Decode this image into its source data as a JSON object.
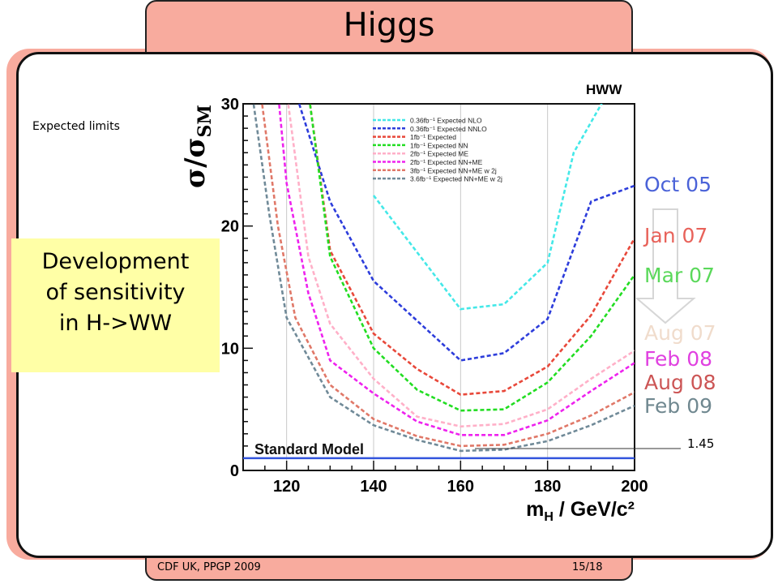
{
  "slide": {
    "title": "Higgs",
    "footer_left": "CDF UK, PPGP 2009",
    "footer_right": "15/18",
    "expected_limits_label": "Expected limits",
    "development_lines": [
      "Development",
      "of sensitivity",
      "in H->WW"
    ],
    "timeline": [
      {
        "label": "Oct 05",
        "color": "#4a62d8"
      },
      {
        "label": "Jan 07",
        "color": "#e8625a"
      },
      {
        "label": "Mar 07",
        "color": "#5ad85a"
      },
      {
        "label": "Aug 07",
        "color": "#f0dccc"
      },
      {
        "label": "Feb 08",
        "color": "#e040e0"
      },
      {
        "label": "Aug 08",
        "color": "#cc5555"
      },
      {
        "label": "Feb 09",
        "color": "#708890"
      }
    ],
    "sm_value_label": "1.45"
  },
  "chart_data": {
    "type": "line",
    "title": "HWW",
    "xlabel": "m_H / GeV/c^2",
    "ylabel": "σ/σ_SM",
    "xlim": [
      110,
      200
    ],
    "ylim": [
      0,
      30
    ],
    "xticks": [
      120,
      140,
      160,
      180,
      200
    ],
    "yticks": [
      0,
      10,
      20,
      30
    ],
    "legend_position": "top-right",
    "reference_line": {
      "name": "Standard Model",
      "y": 1.0,
      "color": "#3355dd"
    },
    "series": [
      {
        "name": "0.36fb⁻¹ Expected NLO",
        "color": "#44e8e8",
        "x": [
          140,
          160,
          170,
          180,
          186,
          194
        ],
        "y": [
          22.5,
          13.2,
          13.6,
          17.0,
          26.0,
          31.0
        ]
      },
      {
        "name": "0.36fb⁻¹ Expected NNLO",
        "color": "#2d3ddb",
        "x": [
          122,
          130,
          140,
          160,
          170,
          180,
          190,
          200
        ],
        "y": [
          31.0,
          22.0,
          15.5,
          9.0,
          9.6,
          12.4,
          22.0,
          23.3
        ]
      },
      {
        "name": "1fb⁻¹ Expected",
        "color": "#e8483a",
        "x": [
          125,
          130,
          140,
          150,
          160,
          170,
          180,
          190,
          200
        ],
        "y": [
          31.0,
          18.0,
          11.2,
          8.3,
          6.2,
          6.5,
          8.5,
          12.7,
          19.0
        ]
      },
      {
        "name": "1fb⁻¹ Expected NN",
        "color": "#22dd22",
        "x": [
          125,
          130,
          140,
          150,
          160,
          170,
          180,
          190,
          200
        ],
        "y": [
          31.0,
          17.5,
          10.0,
          6.6,
          4.9,
          5.0,
          7.2,
          11.0,
          16.0
        ]
      },
      {
        "name": "2fb⁻¹ Expected ME",
        "color": "#ffb0c8",
        "x": [
          120,
          125,
          130,
          140,
          150,
          160,
          170,
          180,
          190,
          200
        ],
        "y": [
          31.0,
          17.5,
          12.0,
          7.5,
          4.4,
          3.6,
          3.8,
          5.0,
          7.5,
          9.8
        ]
      },
      {
        "name": "2fb⁻¹ Expected NN+ME",
        "color": "#ee22ee",
        "x": [
          118,
          120,
          125,
          130,
          140,
          150,
          160,
          170,
          180,
          190,
          200
        ],
        "y": [
          31.0,
          23.5,
          14.5,
          9.0,
          6.3,
          4.0,
          2.9,
          2.9,
          4.1,
          6.5,
          8.8
        ]
      },
      {
        "name": "3fb⁻¹ Expected NN+ME w 2j",
        "color": "#e07868",
        "x": [
          114,
          118,
          122,
          130,
          140,
          150,
          160,
          170,
          180,
          190,
          200
        ],
        "y": [
          31.0,
          20.0,
          12.5,
          7.0,
          4.2,
          2.8,
          2.0,
          2.1,
          3.0,
          4.5,
          6.4
        ]
      },
      {
        "name": "3.6fb⁻¹ Expected NN+ME w 2j",
        "color": "#708a98",
        "x": [
          112,
          116,
          120,
          130,
          140,
          150,
          160,
          170,
          180,
          190,
          200
        ],
        "y": [
          31.0,
          21.0,
          12.5,
          6.0,
          3.7,
          2.5,
          1.6,
          1.7,
          2.4,
          3.7,
          5.3
        ]
      }
    ]
  }
}
